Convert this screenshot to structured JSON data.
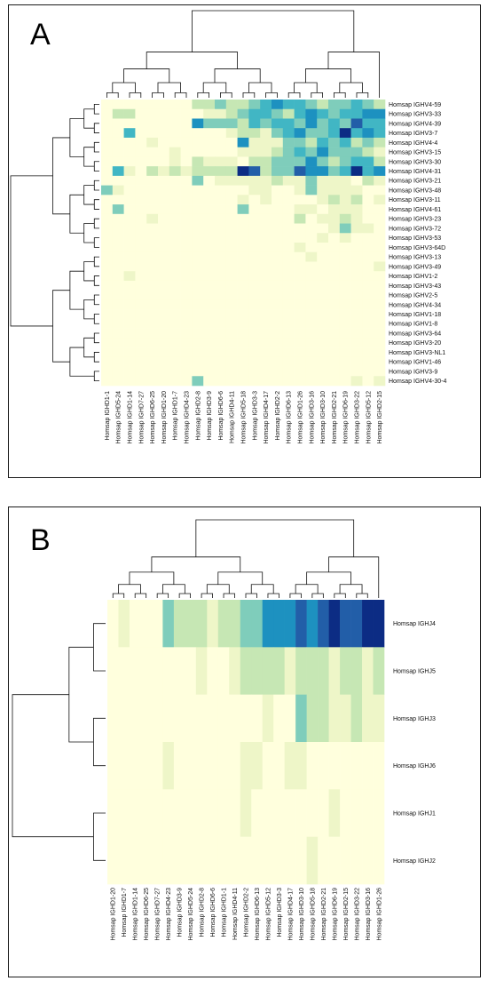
{
  "panels": [
    {
      "letter": "A"
    },
    {
      "letter": "B"
    }
  ],
  "chart_data": [
    {
      "type": "heatmap",
      "title": "",
      "xlabel": "",
      "ylabel": "",
      "colormap": [
        "#ffffdd",
        "#eef6c8",
        "#c6e7b4",
        "#7fcdbb",
        "#41b6c4",
        "#1d91c0",
        "#225ea8",
        "#0c2c84"
      ],
      "colormap_range": [
        0,
        7
      ],
      "dendrograms": {
        "rows": true,
        "columns": true
      },
      "rows": [
        "Homsap IGHV4-59",
        "Homsap IGHV3-33",
        "Homsap IGHV4-39",
        "Homsap IGHV3-7",
        "Homsap IGHV4-4",
        "Homsap IGHV3-15",
        "Homsap IGHV3-30",
        "Homsap IGHV4-31",
        "Homsap IGHV3-21",
        "Homsap IGHV3-48",
        "Homsap IGHV3-11",
        "Homsap IGHV4-61",
        "Homsap IGHV3-23",
        "Homsap IGHV3-72",
        "Homsap IGHV3-53",
        "Homsap IGHV3-64D",
        "Homsap IGHV3-13",
        "Homsap IGHV3-49",
        "Homsap IGHV1-2",
        "Homsap IGHV3-43",
        "Homsap IGHV2-5",
        "Homsap IGHV4-34",
        "Homsap IGHV1-18",
        "Homsap IGHV1-8",
        "Homsap IGHV3-64",
        "Homsap IGHV3-20",
        "Homsap IGHV3-NL1",
        "Homsap IGHV1-46",
        "Homsap IGHV3-9",
        "Homsap IGHV4-30-4"
      ],
      "columns": [
        "Homsap IGHD1-1",
        "Homsap IGHD5-24",
        "Homsap IGHD1-14",
        "Homsap IGHD7-27",
        "Homsap IGHD6-25",
        "Homsap IGHD1-20",
        "Homsap IGHD1-7",
        "Homsap IGHD4-23",
        "Homsap IGHD2-8",
        "Homsap IGHD3-9",
        "Homsap IGHD6-6",
        "Homsap IGHD4-11",
        "Homsap IGHD5-18",
        "Homsap IGHD3-3",
        "Homsap IGHD4-17",
        "Homsap IGHD2-2",
        "Homsap IGHD6-13",
        "Homsap IGHD1-26",
        "Homsap IGHD3-16",
        "Homsap IGHD3-10",
        "Homsap IGHD2-21",
        "Homsap IGHD6-19",
        "Homsap IGHD3-22",
        "Homsap IGHD5-12",
        "Homsap IGHD2-15"
      ],
      "values": [
        [
          0,
          0,
          0,
          0,
          0,
          0,
          0,
          0,
          2,
          2,
          3,
          2,
          2,
          3,
          4,
          5,
          4,
          4,
          3,
          2,
          3,
          3,
          4,
          3,
          2
        ],
        [
          0,
          2,
          2,
          0,
          0,
          0,
          0,
          0,
          0,
          1,
          1,
          2,
          3,
          4,
          4,
          3,
          2,
          4,
          5,
          4,
          3,
          4,
          4,
          5,
          5
        ],
        [
          0,
          0,
          0,
          0,
          0,
          0,
          0,
          0,
          5,
          3,
          3,
          3,
          2,
          4,
          3,
          4,
          4,
          3,
          5,
          3,
          4,
          3,
          6,
          4,
          4
        ],
        [
          0,
          0,
          4,
          0,
          0,
          0,
          0,
          0,
          0,
          0,
          0,
          1,
          2,
          2,
          1,
          3,
          4,
          5,
          3,
          3,
          4,
          7,
          4,
          5,
          4
        ],
        [
          0,
          0,
          0,
          0,
          1,
          0,
          0,
          0,
          0,
          0,
          0,
          0,
          5,
          1,
          1,
          1,
          3,
          3,
          2,
          4,
          3,
          4,
          2,
          3,
          2
        ],
        [
          0,
          0,
          0,
          0,
          0,
          0,
          1,
          0,
          0,
          0,
          0,
          0,
          1,
          1,
          1,
          2,
          3,
          4,
          3,
          5,
          3,
          3,
          3,
          2,
          1
        ],
        [
          0,
          0,
          0,
          0,
          0,
          0,
          1,
          0,
          2,
          1,
          1,
          1,
          0,
          2,
          2,
          3,
          3,
          3,
          5,
          3,
          2,
          3,
          4,
          4,
          2
        ],
        [
          0,
          4,
          1,
          0,
          2,
          1,
          2,
          1,
          2,
          2,
          2,
          2,
          7,
          6,
          2,
          3,
          3,
          6,
          5,
          5,
          3,
          4,
          7,
          4,
          5
        ],
        [
          0,
          0,
          0,
          0,
          0,
          0,
          0,
          0,
          3,
          0,
          1,
          1,
          1,
          1,
          1,
          2,
          1,
          1,
          3,
          1,
          1,
          1,
          0,
          2,
          1
        ],
        [
          3,
          1,
          0,
          0,
          0,
          0,
          0,
          0,
          0,
          0,
          0,
          0,
          0,
          1,
          1,
          0,
          0,
          1,
          3,
          1,
          1,
          1,
          1,
          0,
          0
        ],
        [
          0,
          0,
          0,
          0,
          0,
          0,
          0,
          0,
          0,
          0,
          0,
          0,
          1,
          0,
          1,
          0,
          0,
          0,
          0,
          1,
          2,
          1,
          2,
          0,
          1
        ],
        [
          0,
          3,
          0,
          0,
          0,
          0,
          0,
          0,
          0,
          0,
          0,
          0,
          3,
          0,
          0,
          0,
          0,
          1,
          1,
          0,
          1,
          1,
          1,
          0,
          0
        ],
        [
          0,
          0,
          0,
          0,
          1,
          0,
          0,
          0,
          0,
          0,
          0,
          0,
          0,
          0,
          0,
          0,
          0,
          2,
          0,
          1,
          1,
          2,
          1,
          0,
          0
        ],
        [
          0,
          0,
          0,
          0,
          0,
          0,
          0,
          0,
          0,
          0,
          0,
          0,
          0,
          0,
          0,
          0,
          0,
          0,
          0,
          0,
          1,
          3,
          1,
          1,
          0
        ],
        [
          0,
          0,
          0,
          0,
          0,
          0,
          0,
          0,
          0,
          0,
          0,
          0,
          0,
          0,
          0,
          0,
          0,
          0,
          0,
          1,
          0,
          1,
          0,
          0,
          0
        ],
        [
          0,
          0,
          0,
          0,
          0,
          0,
          0,
          0,
          0,
          0,
          0,
          0,
          0,
          0,
          0,
          0,
          0,
          1,
          0,
          0,
          0,
          0,
          0,
          0,
          0
        ],
        [
          0,
          0,
          0,
          0,
          0,
          0,
          0,
          0,
          0,
          0,
          0,
          0,
          0,
          0,
          0,
          0,
          0,
          0,
          1,
          0,
          0,
          0,
          0,
          0,
          0
        ],
        [
          0,
          0,
          0,
          0,
          0,
          0,
          0,
          0,
          0,
          0,
          0,
          0,
          0,
          0,
          0,
          0,
          0,
          0,
          0,
          0,
          0,
          0,
          0,
          0,
          1
        ],
        [
          0,
          0,
          1,
          0,
          0,
          0,
          0,
          0,
          0,
          0,
          0,
          0,
          0,
          0,
          0,
          0,
          0,
          0,
          0,
          0,
          0,
          0,
          0,
          0,
          0
        ],
        [
          0,
          0,
          0,
          0,
          0,
          0,
          0,
          0,
          0,
          0,
          0,
          0,
          0,
          0,
          0,
          0,
          0,
          0,
          0,
          0,
          0,
          0,
          0,
          0,
          0
        ],
        [
          0,
          0,
          0,
          0,
          0,
          0,
          0,
          0,
          0,
          0,
          0,
          0,
          0,
          0,
          0,
          0,
          0,
          0,
          0,
          0,
          0,
          0,
          0,
          0,
          0
        ],
        [
          0,
          0,
          0,
          0,
          0,
          0,
          0,
          0,
          0,
          0,
          0,
          0,
          0,
          0,
          0,
          0,
          0,
          0,
          0,
          0,
          0,
          0,
          0,
          0,
          0
        ],
        [
          0,
          0,
          0,
          0,
          0,
          0,
          0,
          0,
          0,
          0,
          0,
          0,
          0,
          0,
          0,
          0,
          0,
          0,
          0,
          0,
          0,
          0,
          0,
          0,
          0
        ],
        [
          0,
          0,
          0,
          0,
          0,
          0,
          0,
          0,
          0,
          0,
          0,
          0,
          0,
          0,
          0,
          0,
          0,
          0,
          0,
          0,
          0,
          0,
          0,
          0,
          0
        ],
        [
          0,
          0,
          0,
          0,
          0,
          0,
          0,
          0,
          0,
          0,
          0,
          0,
          0,
          0,
          0,
          0,
          0,
          0,
          0,
          0,
          0,
          0,
          0,
          0,
          0
        ],
        [
          0,
          0,
          0,
          0,
          0,
          0,
          0,
          0,
          0,
          0,
          0,
          0,
          0,
          0,
          0,
          0,
          0,
          0,
          0,
          0,
          0,
          0,
          0,
          0,
          0
        ],
        [
          0,
          0,
          0,
          0,
          0,
          0,
          0,
          0,
          0,
          0,
          0,
          0,
          0,
          0,
          0,
          0,
          0,
          0,
          0,
          0,
          0,
          0,
          0,
          0,
          0
        ],
        [
          0,
          0,
          0,
          0,
          0,
          0,
          0,
          0,
          0,
          0,
          0,
          0,
          0,
          0,
          0,
          0,
          0,
          0,
          0,
          0,
          0,
          0,
          0,
          0,
          0
        ],
        [
          0,
          0,
          0,
          0,
          0,
          0,
          0,
          0,
          0,
          0,
          0,
          0,
          0,
          0,
          0,
          0,
          0,
          0,
          0,
          0,
          0,
          0,
          0,
          0,
          0
        ],
        [
          0,
          0,
          0,
          0,
          0,
          0,
          0,
          0,
          3,
          0,
          0,
          0,
          0,
          0,
          0,
          0,
          0,
          0,
          0,
          0,
          0,
          0,
          1,
          0,
          1
        ]
      ]
    },
    {
      "type": "heatmap",
      "title": "",
      "xlabel": "",
      "ylabel": "",
      "colormap": [
        "#ffffdd",
        "#eef6c8",
        "#c6e7b4",
        "#7fcdbb",
        "#41b6c4",
        "#1d91c0",
        "#225ea8",
        "#0c2c84"
      ],
      "colormap_range": [
        0,
        7
      ],
      "dendrograms": {
        "rows": true,
        "columns": true
      },
      "rows": [
        "Homsap IGHJ4",
        "Homsap IGHJ5",
        "Homsap IGHJ3",
        "Homsap IGHJ6",
        "Homsap IGHJ1",
        "Homsap IGHJ2"
      ],
      "columns": [
        "Homsap IGHD1-20",
        "Homsap IGHD1-7",
        "Homsap IGHD1-14",
        "Homsap IGHD6-25",
        "Homsap IGHD7-27",
        "Homsap IGHD4-23",
        "Homsap IGHD3-9",
        "Homsap IGHD5-24",
        "Homsap IGHD2-8",
        "Homsap IGHD6-6",
        "Homsap IGHD1-1",
        "Homsap IGHD4-11",
        "Homsap IGHD2-2",
        "Homsap IGHD6-13",
        "Homsap IGHD5-12",
        "Homsap IGHD3-3",
        "Homsap IGHD4-17",
        "Homsap IGHD3-10",
        "Homsap IGHD5-18",
        "Homsap IGHD2-21",
        "Homsap IGHD6-19",
        "Homsap IGHD2-15",
        "Homsap IGHD3-22",
        "Homsap IGHD3-16",
        "Homsap IGHD1-26"
      ],
      "values": [
        [
          0,
          1,
          0,
          0,
          0,
          3,
          2,
          2,
          2,
          1,
          2,
          2,
          3,
          3,
          5,
          5,
          5,
          6,
          5,
          6,
          7,
          6,
          6,
          7,
          7
        ],
        [
          0,
          0,
          0,
          0,
          0,
          0,
          0,
          0,
          1,
          0,
          0,
          1,
          2,
          2,
          2,
          2,
          1,
          2,
          2,
          2,
          1,
          2,
          2,
          1,
          2
        ],
        [
          0,
          0,
          0,
          0,
          0,
          0,
          0,
          0,
          0,
          0,
          0,
          0,
          0,
          0,
          1,
          0,
          0,
          3,
          2,
          2,
          1,
          1,
          2,
          1,
          1
        ],
        [
          0,
          0,
          0,
          0,
          0,
          1,
          0,
          0,
          0,
          0,
          0,
          0,
          1,
          1,
          0,
          0,
          1,
          1,
          0,
          0,
          0,
          0,
          0,
          0,
          0
        ],
        [
          0,
          0,
          0,
          0,
          0,
          0,
          0,
          0,
          0,
          0,
          0,
          0,
          1,
          0,
          0,
          0,
          0,
          0,
          0,
          0,
          1,
          0,
          0,
          0,
          0
        ],
        [
          0,
          0,
          0,
          0,
          0,
          0,
          0,
          0,
          0,
          0,
          0,
          0,
          0,
          0,
          0,
          0,
          0,
          0,
          1,
          0,
          0,
          0,
          0,
          0,
          0
        ]
      ]
    }
  ]
}
